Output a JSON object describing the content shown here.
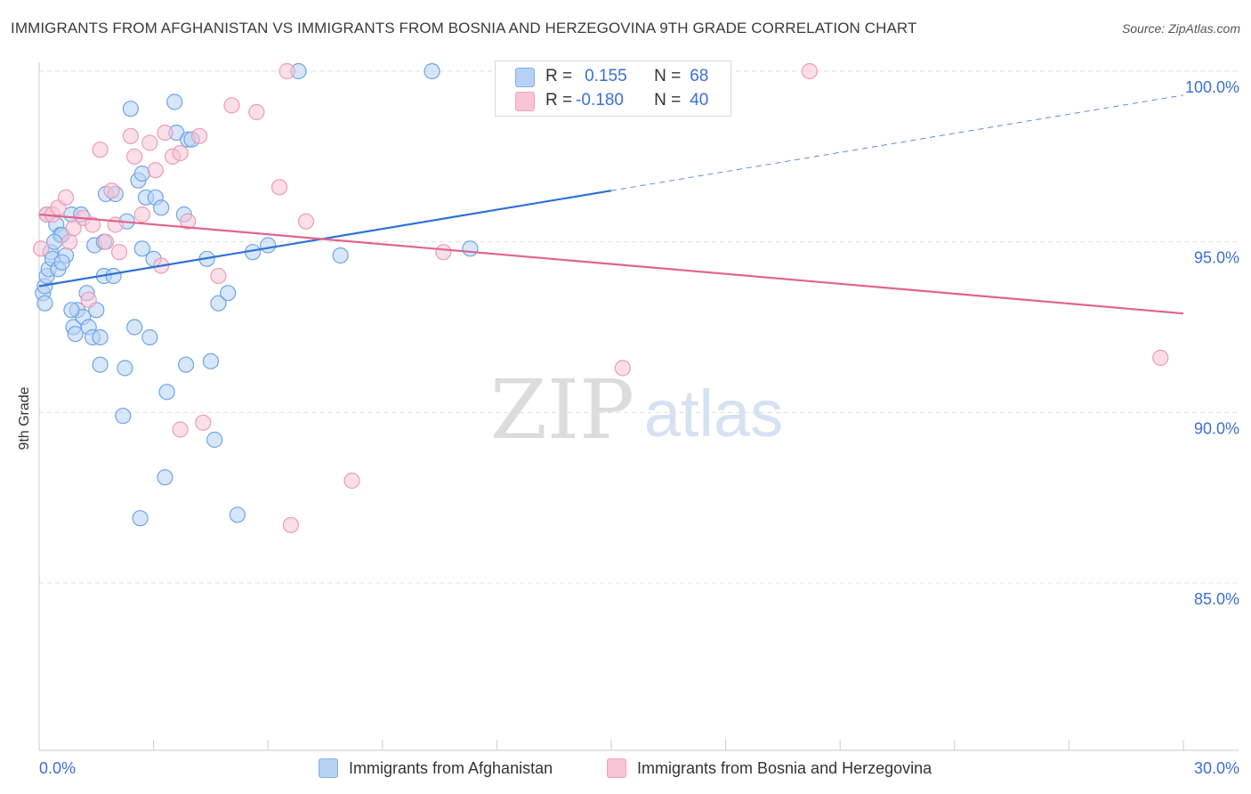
{
  "title": "IMMIGRANTS FROM AFGHANISTAN VS IMMIGRANTS FROM BOSNIA AND HERZEGOVINA 9TH GRADE CORRELATION CHART",
  "source": "Source: ZipAtlas.com",
  "watermark": {
    "zip": "ZIP",
    "atlas": "atlas"
  },
  "legend": {
    "rows": [
      {
        "r_label": "R =",
        "r_value": "0.155",
        "n_label": "N =",
        "n_value": "68",
        "color": "#7eb0ea"
      },
      {
        "r_label": "R =",
        "r_value": "-0.180",
        "n_label": "N =",
        "n_value": "40",
        "color": "#f4a0bb"
      }
    ]
  },
  "bottom_legend": {
    "afghanistan": "Immigrants from Afghanistan",
    "bosnia": "Immigrants from Bosnia and Herzegovina"
  },
  "colors": {
    "blue": "#2f72d3",
    "blue_fill": "#b7d1f4",
    "pink": "#e0648f",
    "pink_fill": "#f8c5d6",
    "tick_label": "#3b6fd4",
    "grid": "#e0e0e0"
  },
  "chart_data": {
    "type": "scatter",
    "title": "IMMIGRANTS FROM AFGHANISTAN VS IMMIGRANTS FROM BOSNIA AND HERZEGOVINA 9TH GRADE CORRELATION CHART",
    "xlabel": "",
    "ylabel": "9th Grade",
    "xlim": [
      0,
      30
    ],
    "ylim": [
      80.5,
      100.9
    ],
    "x_tick_labels": [
      "0.0%",
      "30.0%"
    ],
    "y_ticks": [
      85,
      90,
      95,
      100
    ],
    "y_tick_labels": [
      "85.0%",
      "90.0%",
      "95.0%",
      "100.0%"
    ],
    "grid": true,
    "legend_position": "top-center",
    "series": [
      {
        "name": "Immigrants from Afghanistan",
        "R": 0.155,
        "N": 68,
        "trend": {
          "x": [
            0,
            15
          ],
          "y": [
            93.7,
            96.5
          ],
          "dashed_to": {
            "x": 30,
            "y": 99.3
          }
        },
        "points": [
          [
            0.1,
            93.5
          ],
          [
            0.15,
            93.7
          ],
          [
            0.2,
            94.0
          ],
          [
            0.25,
            94.2
          ],
          [
            0.3,
            94.7
          ],
          [
            0.35,
            94.5
          ],
          [
            0.45,
            95.5
          ],
          [
            0.5,
            94.2
          ],
          [
            0.55,
            95.2
          ],
          [
            0.6,
            95.2
          ],
          [
            0.2,
            95.8
          ],
          [
            0.85,
            95.8
          ],
          [
            0.7,
            94.6
          ],
          [
            0.9,
            92.5
          ],
          [
            0.95,
            92.3
          ],
          [
            1.0,
            93.0
          ],
          [
            1.15,
            92.8
          ],
          [
            1.25,
            93.5
          ],
          [
            1.3,
            92.5
          ],
          [
            1.4,
            92.2
          ],
          [
            1.1,
            95.8
          ],
          [
            1.5,
            93.0
          ],
          [
            1.45,
            94.9
          ],
          [
            1.6,
            92.2
          ],
          [
            1.7,
            95.0
          ],
          [
            1.7,
            94.0
          ],
          [
            1.75,
            96.4
          ],
          [
            1.95,
            94.0
          ],
          [
            2.0,
            96.4
          ],
          [
            2.3,
            95.6
          ],
          [
            2.4,
            98.9
          ],
          [
            2.6,
            96.8
          ],
          [
            2.5,
            92.5
          ],
          [
            2.7,
            94.8
          ],
          [
            2.7,
            97.0
          ],
          [
            2.8,
            96.3
          ],
          [
            2.9,
            92.2
          ],
          [
            3.05,
            96.3
          ],
          [
            3.2,
            96.0
          ],
          [
            3.0,
            94.5
          ],
          [
            3.6,
            98.2
          ],
          [
            3.55,
            99.1
          ],
          [
            3.8,
            95.8
          ],
          [
            3.9,
            98.0
          ],
          [
            4.0,
            98.0
          ],
          [
            4.4,
            94.5
          ],
          [
            4.5,
            91.5
          ],
          [
            4.6,
            89.2
          ],
          [
            4.7,
            93.2
          ],
          [
            4.95,
            93.5
          ],
          [
            5.6,
            94.7
          ],
          [
            6.0,
            94.9
          ],
          [
            6.8,
            100.0
          ],
          [
            7.9,
            94.6
          ],
          [
            10.3,
            100.0
          ],
          [
            11.3,
            94.8
          ],
          [
            3.85,
            91.4
          ],
          [
            1.6,
            91.4
          ],
          [
            2.25,
            91.3
          ],
          [
            3.35,
            90.6
          ],
          [
            2.2,
            89.9
          ],
          [
            3.3,
            88.1
          ],
          [
            2.65,
            86.9
          ],
          [
            5.2,
            87.0
          ],
          [
            0.85,
            93.0
          ],
          [
            0.6,
            94.4
          ],
          [
            0.4,
            95.0
          ],
          [
            0.15,
            93.2
          ]
        ]
      },
      {
        "name": "Immigrants from Bosnia and Herzegovina",
        "R": -0.18,
        "N": 40,
        "trend": {
          "x": [
            0,
            30
          ],
          "y": [
            95.8,
            92.9
          ]
        },
        "points": [
          [
            0.05,
            94.8
          ],
          [
            0.2,
            95.8
          ],
          [
            0.35,
            95.8
          ],
          [
            0.5,
            96.0
          ],
          [
            0.7,
            96.3
          ],
          [
            0.8,
            95.0
          ],
          [
            1.15,
            95.7
          ],
          [
            1.3,
            93.3
          ],
          [
            1.4,
            95.5
          ],
          [
            1.6,
            97.7
          ],
          [
            1.75,
            95.0
          ],
          [
            1.9,
            96.5
          ],
          [
            2.0,
            95.5
          ],
          [
            2.1,
            94.7
          ],
          [
            2.4,
            98.1
          ],
          [
            2.5,
            97.5
          ],
          [
            2.7,
            95.8
          ],
          [
            2.9,
            97.9
          ],
          [
            3.05,
            97.1
          ],
          [
            3.2,
            94.3
          ],
          [
            3.3,
            98.2
          ],
          [
            3.5,
            97.5
          ],
          [
            3.7,
            97.6
          ],
          [
            3.9,
            95.6
          ],
          [
            4.2,
            98.1
          ],
          [
            4.7,
            94.0
          ],
          [
            5.05,
            99.0
          ],
          [
            5.7,
            98.8
          ],
          [
            6.3,
            96.6
          ],
          [
            6.5,
            100.0
          ],
          [
            6.6,
            86.7
          ],
          [
            7.0,
            95.6
          ],
          [
            8.2,
            88.0
          ],
          [
            10.6,
            94.7
          ],
          [
            15.3,
            91.3
          ],
          [
            20.2,
            100.0
          ],
          [
            29.4,
            91.6
          ],
          [
            4.3,
            89.7
          ],
          [
            3.7,
            89.5
          ],
          [
            0.9,
            95.4
          ]
        ]
      }
    ]
  }
}
